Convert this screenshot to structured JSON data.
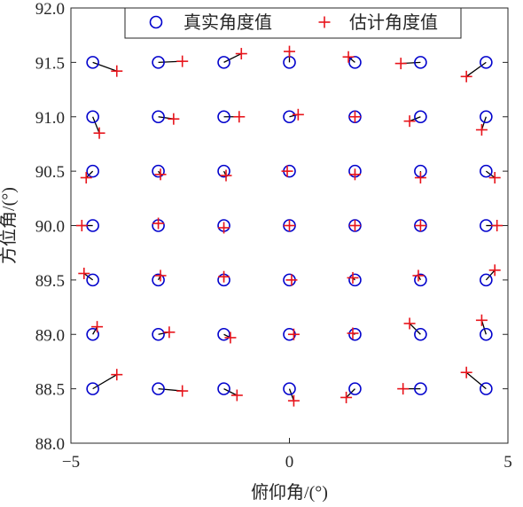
{
  "chart_data": {
    "type": "scatter",
    "title": "",
    "xlabel": "俯仰角/(°)",
    "ylabel": "方位角/(°)",
    "xlim": [
      -5,
      5
    ],
    "ylim": [
      88.0,
      92.0
    ],
    "x_ticks": [
      -5,
      0,
      5
    ],
    "x_tick_labels": [
      "−5",
      "0",
      "5"
    ],
    "y_ticks": [
      88.0,
      88.5,
      89.0,
      89.5,
      90.0,
      90.5,
      91.0,
      91.5,
      92.0
    ],
    "y_tick_labels": [
      "88.0",
      "88.5",
      "89.0",
      "89.5",
      "90.0",
      "90.5",
      "91.0",
      "91.5",
      "92.0"
    ],
    "grid": false,
    "legend_position": "top-center",
    "colors": {
      "true": "#0000cc",
      "estimated": "#e8141b",
      "link": "#000000",
      "axis": "#262626"
    },
    "series": [
      {
        "name": "真实角度值",
        "marker": "circle",
        "points": [
          [
            -4.5,
            91.5
          ],
          [
            -3.0,
            91.5
          ],
          [
            -1.5,
            91.5
          ],
          [
            0.0,
            91.5
          ],
          [
            1.5,
            91.5
          ],
          [
            3.0,
            91.5
          ],
          [
            4.5,
            91.5
          ],
          [
            -4.5,
            91.0
          ],
          [
            -3.0,
            91.0
          ],
          [
            -1.5,
            91.0
          ],
          [
            0.0,
            91.0
          ],
          [
            1.5,
            91.0
          ],
          [
            3.0,
            91.0
          ],
          [
            4.5,
            91.0
          ],
          [
            -4.5,
            90.5
          ],
          [
            -3.0,
            90.5
          ],
          [
            -1.5,
            90.5
          ],
          [
            0.0,
            90.5
          ],
          [
            1.5,
            90.5
          ],
          [
            3.0,
            90.5
          ],
          [
            4.5,
            90.5
          ],
          [
            -4.5,
            90.0
          ],
          [
            -3.0,
            90.0
          ],
          [
            -1.5,
            90.0
          ],
          [
            0.0,
            90.0
          ],
          [
            1.5,
            90.0
          ],
          [
            3.0,
            90.0
          ],
          [
            4.5,
            90.0
          ],
          [
            -4.5,
            89.5
          ],
          [
            -3.0,
            89.5
          ],
          [
            -1.5,
            89.5
          ],
          [
            0.0,
            89.5
          ],
          [
            1.5,
            89.5
          ],
          [
            3.0,
            89.5
          ],
          [
            4.5,
            89.5
          ],
          [
            -4.5,
            89.0
          ],
          [
            -3.0,
            89.0
          ],
          [
            -1.5,
            89.0
          ],
          [
            0.0,
            89.0
          ],
          [
            1.5,
            89.0
          ],
          [
            3.0,
            89.0
          ],
          [
            4.5,
            89.0
          ],
          [
            -4.5,
            88.5
          ],
          [
            -3.0,
            88.5
          ],
          [
            -1.5,
            88.5
          ],
          [
            0.0,
            88.5
          ],
          [
            1.5,
            88.5
          ],
          [
            3.0,
            88.5
          ],
          [
            4.5,
            88.5
          ]
        ]
      },
      {
        "name": "估计角度值",
        "marker": "plus",
        "points": [
          [
            -3.95,
            91.42
          ],
          [
            -2.45,
            91.51
          ],
          [
            -1.1,
            91.58
          ],
          [
            0.0,
            91.6
          ],
          [
            1.35,
            91.55
          ],
          [
            2.55,
            91.49
          ],
          [
            4.05,
            91.37
          ],
          [
            -4.35,
            90.85
          ],
          [
            -2.65,
            90.98
          ],
          [
            -1.15,
            91.0
          ],
          [
            0.2,
            91.02
          ],
          [
            1.5,
            91.0
          ],
          [
            2.75,
            90.96
          ],
          [
            4.4,
            90.88
          ],
          [
            -4.65,
            90.44
          ],
          [
            -2.95,
            90.47
          ],
          [
            -1.45,
            90.46
          ],
          [
            -0.05,
            90.5
          ],
          [
            1.5,
            90.47
          ],
          [
            3.0,
            90.44
          ],
          [
            4.7,
            90.44
          ],
          [
            -4.75,
            90.0
          ],
          [
            -3.0,
            90.02
          ],
          [
            -1.5,
            89.98
          ],
          [
            0.0,
            90.0
          ],
          [
            1.5,
            90.0
          ],
          [
            3.0,
            90.0
          ],
          [
            4.75,
            90.0
          ],
          [
            -4.7,
            89.56
          ],
          [
            -2.95,
            89.54
          ],
          [
            -1.5,
            89.53
          ],
          [
            0.05,
            89.5
          ],
          [
            1.45,
            89.52
          ],
          [
            2.95,
            89.54
          ],
          [
            4.7,
            89.59
          ],
          [
            -4.4,
            89.07
          ],
          [
            -2.75,
            89.02
          ],
          [
            -1.35,
            88.97
          ],
          [
            0.1,
            89.0
          ],
          [
            1.45,
            89.01
          ],
          [
            2.75,
            89.1
          ],
          [
            4.4,
            89.13
          ],
          [
            -3.95,
            88.63
          ],
          [
            -2.45,
            88.48
          ],
          [
            -1.2,
            88.44
          ],
          [
            0.1,
            88.39
          ],
          [
            1.3,
            88.42
          ],
          [
            2.6,
            88.5
          ],
          [
            4.05,
            88.65
          ]
        ]
      }
    ]
  }
}
